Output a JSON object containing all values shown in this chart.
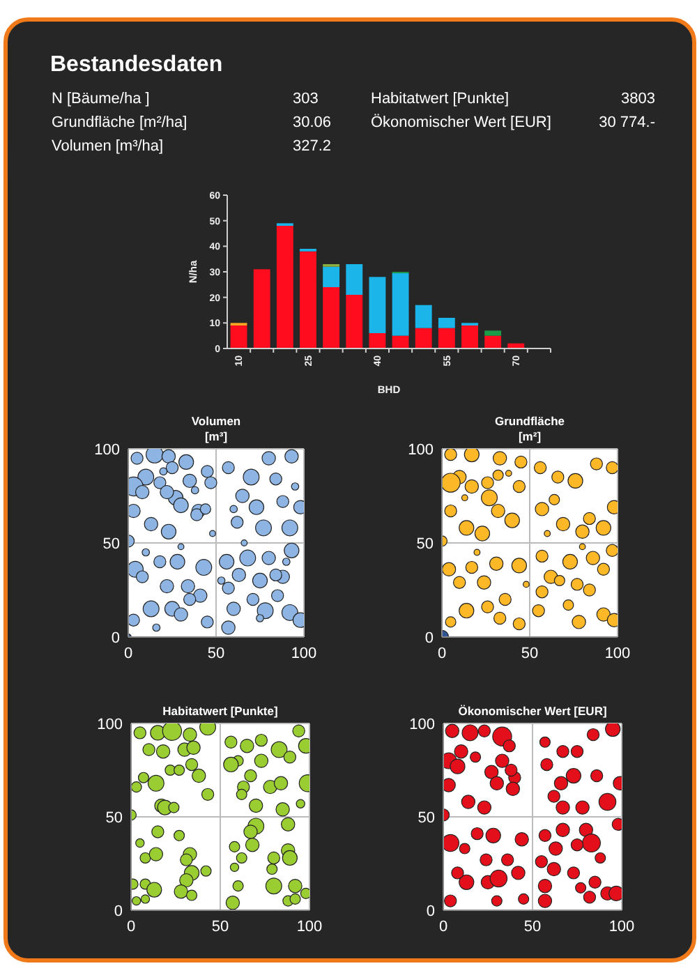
{
  "chart_data": [
    {
      "type": "other",
      "title": "Bestandesdaten",
      "annotations": [
        "N [Bäume/ha ]",
        "303",
        "Grundfläche [m²/ha]",
        "30.06",
        "Volumen [m³/ha]",
        "327.2",
        "Habitatwert [Punkte]",
        "3803",
        "Ökonomischer Wert [EUR]",
        "30 774.-"
      ]
    },
    {
      "type": "bar",
      "stacked": true,
      "xlabel": "BHD",
      "ylabel": "N/ha",
      "ylim": [
        0,
        60
      ],
      "yticks": [
        0,
        10,
        20,
        30,
        40,
        50,
        60
      ],
      "categories": [
        "10",
        null,
        null,
        "25",
        null,
        null,
        "40",
        null,
        null,
        "55",
        null,
        null,
        "70",
        null
      ],
      "series": [
        {
          "color": "#ff0d1e",
          "values": [
            9,
            31,
            48,
            38,
            24,
            21,
            6,
            5,
            8,
            8,
            9,
            5,
            2,
            null
          ]
        },
        {
          "color": "#1cb5ea",
          "values": [
            0,
            0,
            1,
            1,
            8,
            12,
            22,
            24.5,
            9,
            4,
            1,
            0,
            0,
            null
          ]
        },
        {
          "color": "#f5a623",
          "values": [
            1,
            0,
            0,
            0,
            0,
            0,
            0,
            0,
            0,
            0,
            0,
            0,
            0,
            null
          ]
        },
        {
          "color": "#8cae3c",
          "values": [
            0,
            0,
            0,
            0,
            1,
            0,
            0,
            0,
            0,
            0,
            0,
            0,
            0,
            null
          ]
        },
        {
          "color": "#1e9b48",
          "values": [
            0,
            0,
            0,
            0,
            0,
            0,
            0,
            0.5,
            0,
            0,
            0,
            2,
            0,
            null
          ]
        }
      ]
    },
    {
      "type": "bubble",
      "title": "Volumen\n[m³]",
      "xlim": [
        0,
        100
      ],
      "ylim": [
        0,
        100
      ],
      "xticks": [
        0,
        50,
        100
      ],
      "yticks": [
        0,
        50,
        100
      ],
      "grid": true,
      "series": [
        {
          "color": "#8db4e2",
          "x": [
            15,
            5,
            23,
            33,
            10,
            3,
            8,
            18,
            25,
            35,
            45,
            47,
            27,
            22,
            30,
            40,
            3,
            13,
            23,
            39,
            44,
            0,
            4,
            18,
            28,
            43,
            8,
            22,
            34,
            13,
            3,
            25,
            30,
            41,
            45,
            35,
            57,
            70,
            80,
            93,
            65,
            73,
            62,
            77,
            92,
            88,
            98,
            84,
            56,
            68,
            80,
            93,
            63,
            75,
            88,
            57,
            85,
            60,
            78,
            92,
            57,
            98,
            71,
            84,
            20,
            38,
            48,
            10,
            30,
            16,
            53,
            66,
            95,
            75,
            90,
            60
          ],
          "values": [
            97,
            95,
            96,
            93,
            85,
            80,
            77,
            82,
            90,
            83,
            88,
            82,
            74,
            77,
            70,
            67,
            67,
            60,
            56,
            65,
            68,
            51,
            36,
            40,
            40,
            37,
            32,
            27,
            27,
            15,
            9,
            15,
            12,
            22,
            8,
            20,
            90,
            85,
            95,
            96,
            75,
            69,
            61,
            58,
            58,
            72,
            69,
            84,
            40,
            42,
            42,
            46,
            33,
            30,
            32,
            26,
            22,
            15,
            14,
            13,
            5,
            9,
            20,
            33,
            88,
            78,
            55,
            45,
            48,
            5,
            30,
            50,
            80,
            10,
            40,
            68
          ],
          "sizes": [
            0.8,
            0.4,
            0.5,
            0.6,
            0.7,
            1,
            0.5,
            0.4,
            0.4,
            0.5,
            0.4,
            0.4,
            0.6,
            0.5,
            0.6,
            0.5,
            0.5,
            0.5,
            0.6,
            0.4,
            0.3,
            0.4,
            0.7,
            0.4,
            0.6,
            0.7,
            0.4,
            0.5,
            0.5,
            0.7,
            0.4,
            0.6,
            0.5,
            0.5,
            0.4,
            0.4,
            0.4,
            0.7,
            0.5,
            0.5,
            0.5,
            0.6,
            0.4,
            0.7,
            0.7,
            0.4,
            0.5,
            0.4,
            0.6,
            0.7,
            0.5,
            0.6,
            0.5,
            0.6,
            0.5,
            0.4,
            0.4,
            0.5,
            0.7,
            0.7,
            0.5,
            0.6,
            0.4,
            0.4,
            0.15,
            0.15,
            0.1,
            0.15,
            0.1,
            0.15,
            0.15,
            0.1,
            0.15,
            0.15,
            0.15,
            0.15
          ]
        },
        {
          "color": "#2f5597",
          "x": [
            0
          ],
          "values": [
            0
          ],
          "sizes": [
            0.1
          ]
        }
      ]
    },
    {
      "type": "bubble",
      "title": "Grundfläche\n[m²]",
      "xlim": [
        0,
        100
      ],
      "ylim": [
        0,
        100
      ],
      "xticks": [
        0,
        50,
        100
      ],
      "yticks": [
        0,
        50,
        100
      ],
      "grid": true,
      "series": [
        {
          "color": "#fdb827",
          "x": [
            5,
            17,
            33,
            45,
            10,
            5,
            17,
            32,
            26,
            44,
            27,
            5,
            32,
            40,
            14,
            23,
            0,
            4,
            17,
            31,
            44,
            10,
            24,
            36,
            14,
            5,
            26,
            33,
            44,
            56,
            66,
            76,
            88,
            97,
            57,
            69,
            84,
            92,
            98,
            80,
            64,
            57,
            73,
            86,
            97,
            62,
            77,
            92,
            57,
            84,
            72,
            55,
            78,
            92,
            98,
            67,
            13,
            38,
            20,
            48,
            60,
            80
          ],
          "values": [
            97,
            97,
            95,
            93,
            85,
            82,
            80,
            86,
            82,
            80,
            74,
            67,
            67,
            62,
            58,
            55,
            51,
            36,
            37,
            39,
            38,
            29,
            29,
            20,
            14,
            8,
            16,
            10,
            7,
            90,
            85,
            83,
            92,
            90,
            68,
            60,
            63,
            58,
            69,
            56,
            73,
            43,
            40,
            42,
            46,
            32,
            28,
            36,
            24,
            25,
            17,
            14,
            8,
            12,
            9,
            30,
            74,
            87,
            45,
            28,
            55,
            48
          ],
          "sizes": [
            0.4,
            0.6,
            0.5,
            0.4,
            0.5,
            1,
            0.5,
            0.3,
            0.4,
            0.4,
            0.7,
            0.4,
            0.5,
            0.6,
            0.6,
            0.6,
            0.3,
            0.5,
            0.4,
            0.5,
            0.6,
            0.4,
            0.5,
            0.4,
            0.6,
            0.3,
            0.4,
            0.4,
            0.4,
            0.4,
            0.4,
            0.6,
            0.4,
            0.4,
            0.5,
            0.5,
            0.4,
            0.6,
            0.5,
            0.5,
            0.3,
            0.4,
            0.6,
            0.5,
            0.4,
            0.5,
            0.4,
            0.4,
            0.4,
            0.4,
            0.3,
            0.4,
            0.5,
            0.5,
            0.5,
            0.3,
            0.1,
            0.1,
            0.1,
            0.1,
            0.1,
            0.1
          ]
        },
        {
          "color": "#2f5597",
          "x": [
            0
          ],
          "values": [
            0
          ],
          "sizes": [
            0.5
          ]
        }
      ]
    },
    {
      "type": "bubble",
      "title": "Habitatwert [Punkte]",
      "xlim": [
        0,
        100
      ],
      "ylim": [
        0,
        100
      ],
      "xticks": [
        0,
        50,
        100
      ],
      "yticks": [
        0,
        50,
        100
      ],
      "grid": true,
      "series": [
        {
          "color": "#9acd32",
          "x": [
            5,
            15,
            23,
            33,
            43,
            10,
            18,
            30,
            35,
            34,
            38,
            22,
            27,
            7,
            14,
            3,
            43,
            17,
            19,
            24,
            0,
            15,
            27,
            5,
            8,
            14,
            33,
            31,
            34,
            31,
            42,
            1,
            8,
            13,
            28,
            34,
            8,
            3,
            56,
            65,
            73,
            83,
            94,
            98,
            60,
            73,
            56,
            89,
            67,
            63,
            78,
            84,
            99,
            62,
            70,
            85,
            95,
            70,
            67,
            88,
            68,
            58,
            62,
            80,
            88,
            89,
            58,
            79,
            60,
            80,
            92,
            57,
            88,
            92,
            98
          ],
          "values": [
            95,
            95,
            96,
            94,
            98,
            86,
            85,
            86,
            87,
            78,
            72,
            75,
            75,
            71,
            68,
            66,
            62,
            56,
            55,
            55,
            51,
            42,
            40,
            36,
            28,
            30,
            30,
            27,
            20,
            16,
            21,
            14,
            14,
            11,
            10,
            8,
            6,
            5,
            90,
            88,
            91,
            86,
            96,
            88,
            80,
            80,
            78,
            82,
            72,
            66,
            66,
            68,
            68,
            62,
            56,
            54,
            57,
            45,
            42,
            46,
            35,
            34,
            28,
            28,
            32,
            28,
            23,
            22,
            13,
            13,
            13,
            4,
            5,
            6,
            9
          ],
          "sizes": [
            0.4,
            0.6,
            1,
            0.5,
            0.7,
            0.4,
            0.5,
            0.5,
            0.5,
            0.4,
            0.5,
            0.3,
            0.3,
            0.3,
            0.7,
            0.3,
            0.4,
            0.5,
            0.6,
            0.3,
            0.3,
            0.4,
            0.3,
            0.2,
            0.3,
            0.5,
            0.5,
            0.4,
            0.6,
            0.5,
            0.3,
            0.3,
            0.3,
            0.6,
            0.5,
            0.3,
            0.2,
            0.2,
            0.4,
            0.5,
            0.4,
            0.7,
            0.4,
            0.6,
            0.3,
            0.5,
            0.6,
            0.4,
            0.4,
            0.4,
            0.5,
            0.5,
            0.8,
            0.3,
            0.5,
            0.5,
            0.2,
            0.7,
            0.5,
            0.5,
            0.5,
            0.3,
            0.3,
            0.4,
            0.5,
            0.6,
            0.2,
            0.3,
            0.3,
            0.7,
            0.5,
            0.5,
            0.3,
            0.3,
            0.3
          ]
        }
      ]
    },
    {
      "type": "bubble",
      "title": "Ökonomischer Wert [EUR]",
      "xlim": [
        0,
        100
      ],
      "ylim": [
        0,
        100
      ],
      "xticks": [
        0,
        50,
        100
      ],
      "yticks": [
        0,
        50,
        100
      ],
      "grid": true,
      "series": [
        {
          "color": "#e3101c",
          "x": [
            5,
            15,
            23,
            33,
            37,
            10,
            3,
            8,
            18,
            33,
            40,
            27,
            38,
            30,
            39,
            3,
            14,
            23,
            0,
            4,
            19,
            28,
            44,
            12,
            24,
            36,
            13,
            4,
            25,
            31,
            42,
            30,
            45,
            8,
            57,
            67,
            75,
            84,
            95,
            58,
            73,
            66,
            86,
            99,
            62,
            78,
            92,
            67,
            57,
            67,
            80,
            83,
            98,
            63,
            75,
            55,
            88,
            62,
            73,
            85,
            57,
            77,
            57,
            92,
            97,
            82
          ],
          "values": [
            96,
            95,
            96,
            93,
            88,
            85,
            80,
            77,
            82,
            80,
            71,
            74,
            75,
            68,
            65,
            67,
            58,
            55,
            51,
            36,
            41,
            40,
            38,
            33,
            27,
            27,
            15,
            5,
            15,
            17,
            20,
            5,
            6,
            20,
            90,
            85,
            85,
            94,
            97,
            78,
            72,
            68,
            72,
            68,
            61,
            55,
            58,
            55,
            40,
            43,
            43,
            36,
            46,
            33,
            35,
            26,
            28,
            22,
            20,
            15,
            13,
            12,
            5,
            9,
            9,
            7
          ],
          "sizes": [
            0.5,
            0.7,
            0.4,
            1,
            0.4,
            0.5,
            0.7,
            0.6,
            0.3,
            0.5,
            0.4,
            0.5,
            0.4,
            0.5,
            0.5,
            0.5,
            0.5,
            0.5,
            0.4,
            0.8,
            0.4,
            0.6,
            0.5,
            0.3,
            0.4,
            0.4,
            0.6,
            0.4,
            0.5,
            0.8,
            0.5,
            0.3,
            0.3,
            0.4,
            0.3,
            0.4,
            0.4,
            0.4,
            0.6,
            0.4,
            0.6,
            0.5,
            0.4,
            0.5,
            0.4,
            0.5,
            0.8,
            0.5,
            0.4,
            0.5,
            0.5,
            0.9,
            0.4,
            0.5,
            0.4,
            0.4,
            0.3,
            0.5,
            0.4,
            0.4,
            0.5,
            0.3,
            0.5,
            0.5,
            0.6,
            0.4
          ]
        }
      ]
    }
  ]
}
